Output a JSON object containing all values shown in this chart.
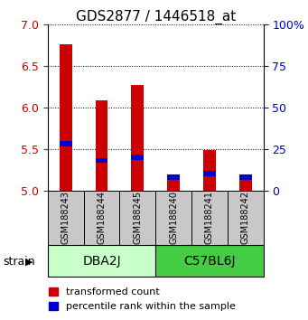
{
  "title": "GDS2877 / 1446518_at",
  "samples": [
    "GSM188243",
    "GSM188244",
    "GSM188245",
    "GSM188240",
    "GSM188241",
    "GSM188242"
  ],
  "group_info": [
    {
      "label": "DBA2J",
      "start": 0,
      "end": 2,
      "color": "#c8ffc8"
    },
    {
      "label": "C57BL6J",
      "start": 3,
      "end": 5,
      "color": "#44cc44"
    }
  ],
  "transformed_counts": [
    6.76,
    6.08,
    6.27,
    5.14,
    5.48,
    5.14
  ],
  "percentile_ranks": [
    28,
    18,
    20,
    8,
    10,
    8
  ],
  "ylim": [
    5.0,
    7.0
  ],
  "yticks": [
    5.0,
    5.5,
    6.0,
    6.5,
    7.0
  ],
  "right_yticks": [
    0,
    25,
    50,
    75,
    100
  ],
  "right_ylim": [
    0,
    100
  ],
  "bar_width": 0.35,
  "blue_bar_width": 0.35,
  "blue_bar_height": 0.06,
  "red_color": "#cc0000",
  "blue_color": "#0000cc",
  "tick_label_color_left": "#cc0000",
  "tick_label_color_right": "#0000cc",
  "sample_bg": "#c8c8c8",
  "font_size_title": 11,
  "font_size_ticks": 9,
  "font_size_legend": 8,
  "font_size_group": 10,
  "font_size_sample": 7,
  "font_size_strain": 9
}
